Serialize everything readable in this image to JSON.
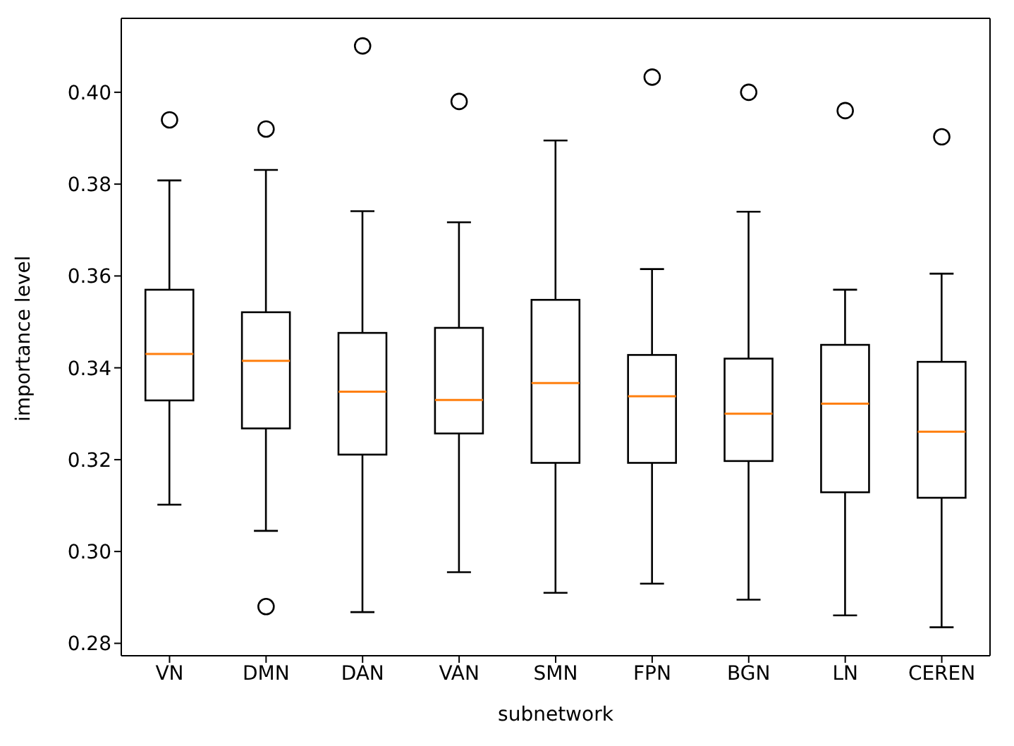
{
  "chart_data": {
    "type": "box",
    "xlabel": "subnetwork",
    "ylabel": "importance level",
    "categories": [
      "VN",
      "DMN",
      "DAN",
      "VAN",
      "SMN",
      "FPN",
      "BGN",
      "LN",
      "CEREN"
    ],
    "boxes": [
      {
        "low": 0.3102,
        "q1": 0.3329,
        "median": 0.343,
        "q3": 0.357,
        "high": 0.3808,
        "outliers": [
          0.394
        ]
      },
      {
        "low": 0.3045,
        "q1": 0.3268,
        "median": 0.3415,
        "q3": 0.3521,
        "high": 0.3831,
        "outliers": [
          0.392,
          0.288
        ]
      },
      {
        "low": 0.2868,
        "q1": 0.3211,
        "median": 0.3348,
        "q3": 0.3476,
        "high": 0.3741,
        "outliers": [
          0.4101
        ]
      },
      {
        "low": 0.2955,
        "q1": 0.3257,
        "median": 0.333,
        "q3": 0.3487,
        "high": 0.3717,
        "outliers": [
          0.398
        ]
      },
      {
        "low": 0.291,
        "q1": 0.3193,
        "median": 0.3367,
        "q3": 0.3548,
        "high": 0.3895
      },
      {
        "low": 0.293,
        "q1": 0.3193,
        "median": 0.3338,
        "q3": 0.3428,
        "high": 0.3615,
        "outliers": [
          0.4033
        ]
      },
      {
        "low": 0.2895,
        "q1": 0.3197,
        "median": 0.33,
        "q3": 0.342,
        "high": 0.374,
        "outliers": [
          0.4
        ]
      },
      {
        "low": 0.2861,
        "q1": 0.3129,
        "median": 0.3322,
        "q3": 0.345,
        "high": 0.357,
        "outliers": [
          0.396
        ]
      },
      {
        "low": 0.2835,
        "q1": 0.3117,
        "median": 0.3261,
        "q3": 0.3413,
        "high": 0.3605,
        "outliers": [
          0.3903
        ]
      }
    ],
    "ylim": [
      0.2773,
      0.4161
    ],
    "yticks": [
      0.28,
      {
        "value": 0.3,
        "label": "0.30"
      },
      0.32,
      0.34,
      0.36,
      0.38,
      {
        "value": 0.4,
        "label": "0.40"
      }
    ]
  }
}
